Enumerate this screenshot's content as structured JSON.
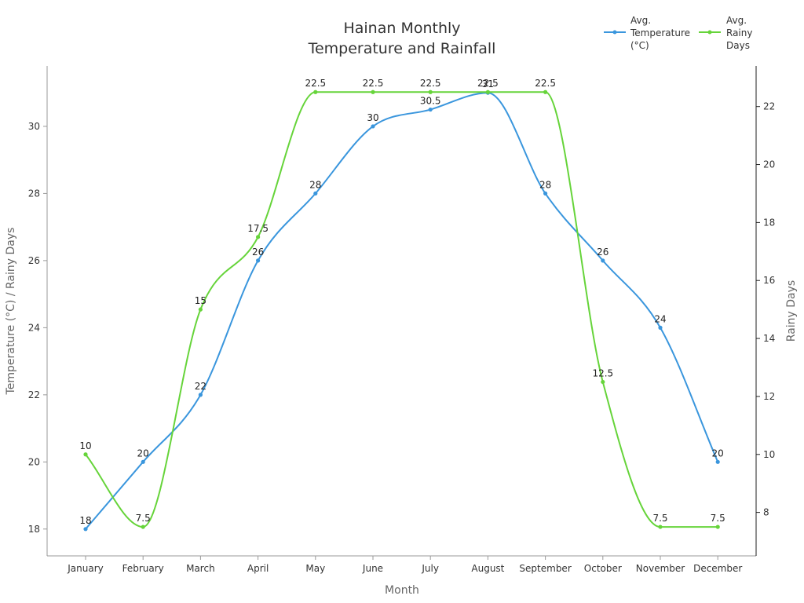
{
  "chart_data": {
    "type": "line",
    "title_lines": [
      "Hainan Monthly",
      "Temperature and Rainfall"
    ],
    "xlabel": "Month",
    "ylabel": "Temperature (°C) / Rainy Days",
    "y2label": "Rainy Days",
    "categories": [
      "January",
      "February",
      "March",
      "April",
      "May",
      "June",
      "July",
      "August",
      "September",
      "October",
      "November",
      "December"
    ],
    "ylim": [
      17.2,
      31.8
    ],
    "y_ticks": [
      18,
      20,
      22,
      24,
      26,
      28,
      30
    ],
    "y2lim": [
      6.5,
      23.4
    ],
    "y2_ticks": [
      8,
      10,
      12,
      14,
      16,
      18,
      20,
      22
    ],
    "legend_position": "top-right",
    "grid": false,
    "series": [
      {
        "name": "Avg. Temperature (°C)",
        "legend_lines": [
          "Avg.",
          "Temperature",
          "(°C)"
        ],
        "axis": "left",
        "color": "#3a96dd",
        "values": [
          18,
          20,
          22,
          26,
          28,
          30,
          30.5,
          31,
          28,
          26,
          24,
          20
        ],
        "labels": [
          "18",
          "20",
          "22",
          "26",
          "28",
          "30",
          "30.5",
          "31",
          "28",
          "26",
          "24",
          "20"
        ]
      },
      {
        "name": "Avg. Rainy Days",
        "legend_lines": [
          "Avg.",
          "Rainy",
          "Days"
        ],
        "axis": "right",
        "color": "#66d43a",
        "values": [
          10,
          7.5,
          15,
          17.5,
          22.5,
          22.5,
          22.5,
          22.5,
          22.5,
          12.5,
          7.5,
          7.5
        ],
        "labels": [
          "10",
          "7.5",
          "15",
          "17.5",
          "22.5",
          "22.5",
          "22.5",
          "22.5",
          "22.5",
          "12.5",
          "7.5",
          "7.5"
        ]
      }
    ]
  }
}
